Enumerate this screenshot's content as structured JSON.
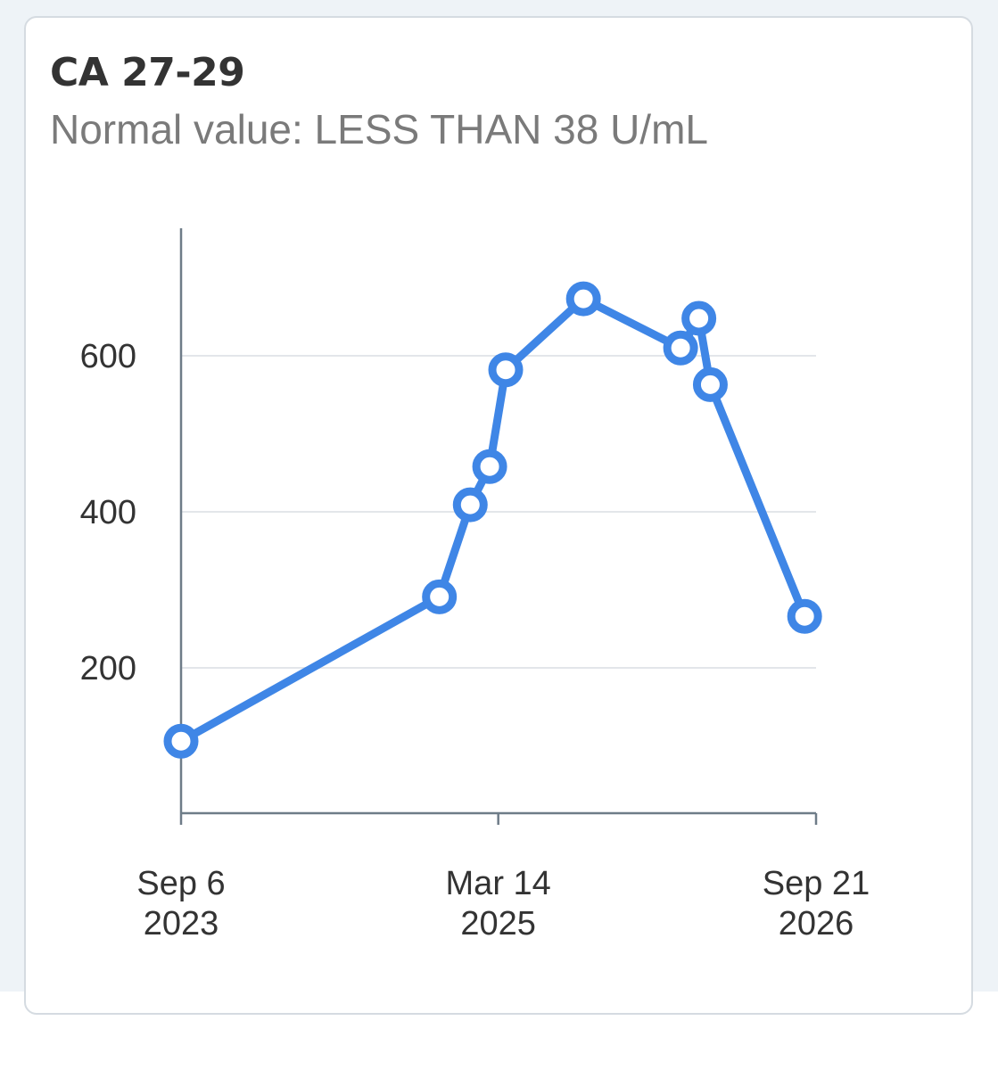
{
  "card": {
    "title": "CA 27-29",
    "subtitle": "Normal value: LESS THAN 38 U/mL"
  },
  "chart_data": {
    "type": "line",
    "title": "CA 27-29",
    "subtitle": "Normal value: LESS THAN 38 U/mL",
    "xlabel": "",
    "ylabel": "",
    "x_type": "date",
    "xlim": [
      "2023-09-06",
      "2026-09-21"
    ],
    "ylim": [
      0,
      700
    ],
    "y_ticks": [
      200,
      400,
      600
    ],
    "y_tick_labels": [
      "200",
      "400",
      "600"
    ],
    "x_ticks": [
      "2023-09-06",
      "2025-03-14",
      "2026-09-21"
    ],
    "x_tick_labels": [
      {
        "line1": "Sep 6",
        "line2": "2023"
      },
      {
        "line1": "Mar 14",
        "line2": "2025"
      },
      {
        "line1": "Sep 21",
        "line2": "2026"
      }
    ],
    "grid": true,
    "colors": {
      "line": "#3f86e6",
      "grid": "#e3e6ea",
      "axis": "#6e7c88"
    },
    "series": [
      {
        "x": [
          "2023-09-06",
          "2024-12-01",
          "2025-01-24",
          "2025-02-27",
          "2025-03-27",
          "2025-08-10",
          "2026-01-27",
          "2026-02-28",
          "2026-03-20",
          "2026-09-01"
        ],
        "values": [
          106,
          291,
          409,
          458,
          582,
          673,
          610,
          648,
          563,
          266
        ]
      }
    ]
  }
}
